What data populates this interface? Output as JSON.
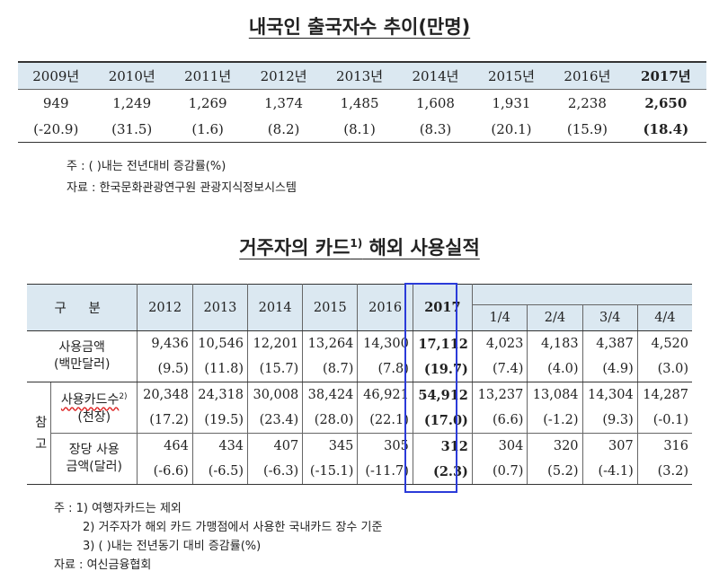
{
  "table1": {
    "title": "내국인 출국자수 추이(만명)",
    "years": [
      "2009년",
      "2010년",
      "2011년",
      "2012년",
      "2013년",
      "2014년",
      "2015년",
      "2016년",
      "2017년"
    ],
    "values": [
      "949",
      "1,249",
      "1,269",
      "1,374",
      "1,485",
      "1,608",
      "1,931",
      "2,238",
      "2,650"
    ],
    "changes": [
      "(-20.9)",
      "(31.5)",
      "(1.6)",
      "(8.2)",
      "(8.1)",
      "(8.3)",
      "(20.1)",
      "(15.9)",
      "(18.4)"
    ],
    "note1": "주 : ( )내는 전년대비 증감률(%)",
    "note2": "자료 : 한국문화관광연구원 관광지식정보시스템"
  },
  "table2": {
    "title_main": "거주자의 카드",
    "title_sup": "1)",
    "title_rest": " 해외 사용실적",
    "header_label": "구  분",
    "years": [
      "2012",
      "2013",
      "2014",
      "2015",
      "2016",
      "2017"
    ],
    "quarters": [
      "1/4",
      "2/4",
      "3/4",
      "4/4"
    ],
    "row1_label_a": "사용금액",
    "row1_label_b": "(백만달러)",
    "row1_values": [
      "9,436",
      "10,546",
      "12,201",
      "13,264",
      "14,300",
      "17,112",
      "4,023",
      "4,183",
      "4,387",
      "4,520"
    ],
    "row1_changes": [
      "(9.5)",
      "(11.8)",
      "(15.7)",
      "(8.7)",
      "(7.8)",
      "(19.7)",
      "(7.4)",
      "(4.0)",
      "(4.9)",
      "(3.0)"
    ],
    "ref_label_1": "참",
    "ref_label_2": "고",
    "row2_label_a": "사용카드수",
    "row2_label_sup": "2)",
    "row2_label_b": "(천장)",
    "row2_values": [
      "20,348",
      "24,318",
      "30,008",
      "38,424",
      "46,921",
      "54,912",
      "13,237",
      "13,084",
      "14,304",
      "14,287"
    ],
    "row2_changes": [
      "(17.2)",
      "(19.5)",
      "(23.4)",
      "(28.0)",
      "(22.1)",
      "(17.0)",
      "(6.6)",
      "(-1.2)",
      "(9.3)",
      "(-0.1)"
    ],
    "row3_label_a": "장당 사용",
    "row3_label_b": "금액(달러)",
    "row3_values": [
      "464",
      "434",
      "407",
      "345",
      "305",
      "312",
      "304",
      "320",
      "307",
      "316"
    ],
    "row3_changes": [
      "(-6.6)",
      "(-6.5)",
      "(-6.3)",
      "(-15.1)",
      "(-11.7)",
      "(2.3)",
      "(0.7)",
      "(5.2)",
      "(-4.1)",
      "(3.2)"
    ],
    "note1": "주 : 1) 여행자카드는 제외",
    "note2": "2) 거주자가 해외 카드 가맹점에서 사용한 국내카드 장수 기준",
    "note3": "3) ( )내는 전년동기 대비 증감률(%)",
    "note4": "자료 : 여신금융협회",
    "highlight_color": "#2b3bd9",
    "header_bg": "#dbe8f1"
  }
}
